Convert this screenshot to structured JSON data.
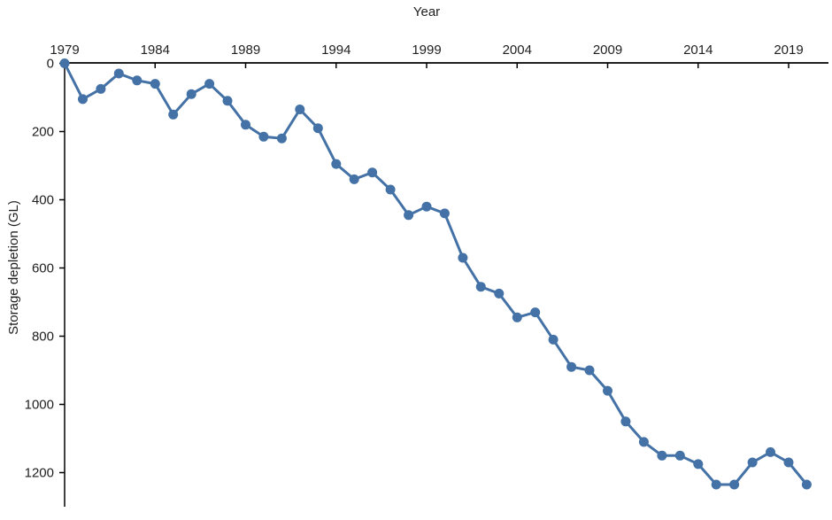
{
  "chart_data": {
    "type": "line",
    "title": "",
    "xlabel": "Year",
    "ylabel": "Storage depletion (GL)",
    "x": [
      1979,
      1980,
      1981,
      1982,
      1983,
      1984,
      1985,
      1986,
      1987,
      1988,
      1989,
      1990,
      1991,
      1992,
      1993,
      1994,
      1995,
      1996,
      1997,
      1998,
      1999,
      2000,
      2001,
      2002,
      2003,
      2004,
      2005,
      2006,
      2007,
      2008,
      2009,
      2010,
      2011,
      2012,
      2013,
      2014,
      2015,
      2016,
      2017,
      2018,
      2019,
      2020
    ],
    "values": [
      0,
      105,
      75,
      30,
      50,
      60,
      150,
      90,
      60,
      110,
      180,
      215,
      220,
      135,
      190,
      295,
      340,
      320,
      370,
      445,
      420,
      440,
      570,
      655,
      675,
      745,
      730,
      810,
      890,
      900,
      960,
      1050,
      1110,
      1150,
      1150,
      1175,
      1235,
      1235,
      1170,
      1140,
      1170,
      1235
    ],
    "x_ticks": [
      1979,
      1984,
      1989,
      1994,
      1999,
      2004,
      2009,
      2014,
      2019
    ],
    "y_ticks": [
      0,
      200,
      400,
      600,
      800,
      1000,
      1200
    ],
    "x_range": [
      1979,
      2021.2
    ],
    "ylim": [
      0,
      1300
    ],
    "y_axis_inverted": true,
    "x_axis_position": "top",
    "grid": false,
    "legend": "none",
    "line_color": "#4472a6",
    "marker_color": "#4472a6",
    "marker": "circle",
    "axis_color": "#000000"
  }
}
